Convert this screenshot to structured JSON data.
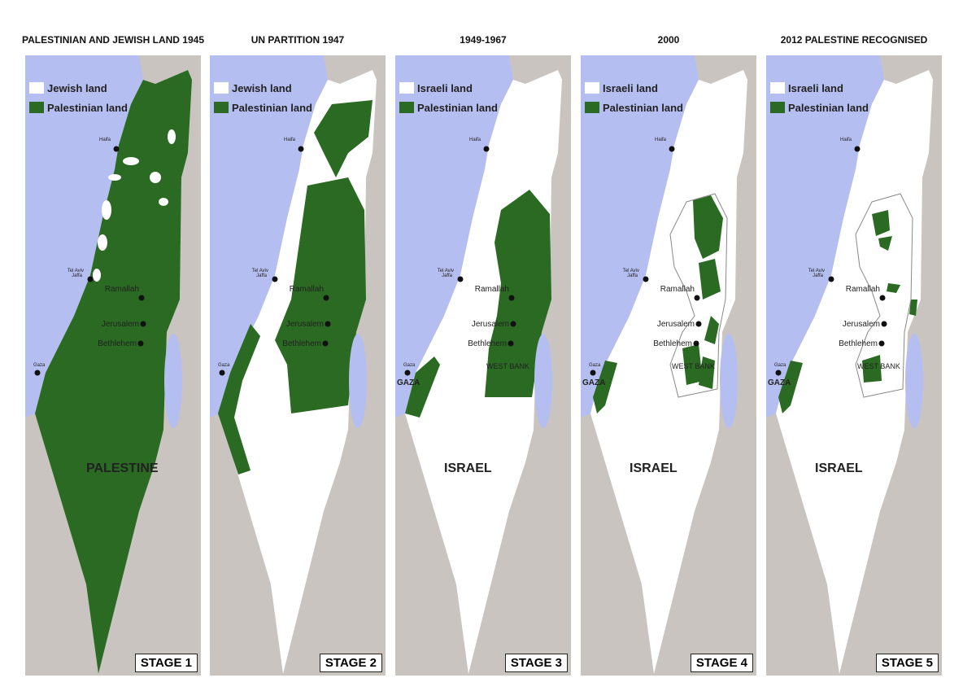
{
  "colors": {
    "sea": "#b5bef0",
    "land": "#c9c4c0",
    "green": "#2a6a22",
    "white": "#ffffff",
    "dead_sea": "#b5bef0"
  },
  "panels": [
    {
      "title": "PALESTINIAN AND JEWISH LAND 1945",
      "legend": [
        "Jewish land",
        "Palestinian land"
      ],
      "region_label": "PALESTINE",
      "stage": "STAGE 1",
      "variant": "1945"
    },
    {
      "title": "UN PARTITION 1947",
      "legend": [
        "Jewish land",
        "Palestinian land"
      ],
      "region_label": "",
      "stage": "STAGE 2",
      "variant": "1947"
    },
    {
      "title": "1949-1967",
      "legend": [
        "Israeli land",
        "Palestinian land"
      ],
      "region_label": "ISRAEL",
      "stage": "STAGE 3",
      "variant": "1967",
      "west_bank": "WEST BANK",
      "gaza": "GAZA"
    },
    {
      "title": "2000",
      "legend": [
        "Israeli land",
        "Palestinian land"
      ],
      "region_label": "ISRAEL",
      "stage": "STAGE 4",
      "variant": "2000",
      "west_bank": "WEST BANK",
      "gaza": "GAZA"
    },
    {
      "title": "2012 PALESTINE RECOGNISED",
      "legend": [
        "Israeli land",
        "Palestinian land"
      ],
      "region_label": "ISRAEL",
      "stage": "STAGE 5",
      "variant": "2012",
      "west_bank": "WEST BANK",
      "gaza": "GAZA"
    }
  ],
  "cities": {
    "haifa": "Haifa",
    "tel_aviv": "Tel Aviv",
    "jaffa": "Jaffa",
    "ramallah": "Ramallah",
    "jerusalem": "Jerusalem",
    "bethlehem": "Bethlehem",
    "gaza": "Gaza"
  }
}
